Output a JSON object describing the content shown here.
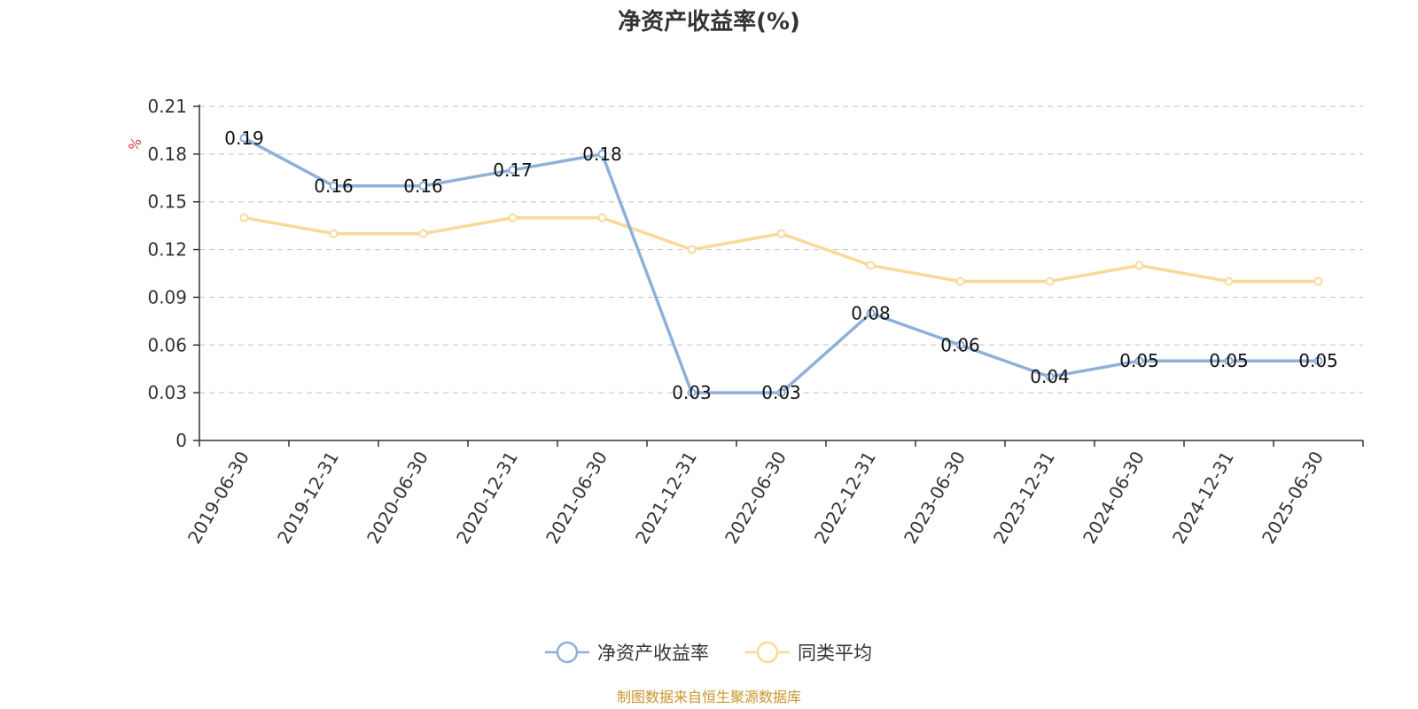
{
  "chart_data": {
    "type": "line",
    "title": "净资产收益率(%)",
    "y_unit": "%",
    "categories": [
      "2019-06-30",
      "2019-12-31",
      "2020-06-30",
      "2020-12-31",
      "2021-06-30",
      "2021-12-31",
      "2022-06-30",
      "2022-12-31",
      "2023-06-30",
      "2023-12-31",
      "2024-06-30",
      "2024-12-31",
      "2025-06-30"
    ],
    "ylim": [
      0,
      0.21
    ],
    "yticks": [
      "0",
      "0.03",
      "0.06",
      "0.09",
      "0.12",
      "0.15",
      "0.18",
      "0.21"
    ],
    "ytick_values": [
      0,
      0.03,
      0.06,
      0.09,
      0.12,
      0.15,
      0.18,
      0.21
    ],
    "grid": true,
    "legend_position": "bottom-center",
    "series": [
      {
        "name": "净资产收益率",
        "color": "#8eb0da",
        "show_labels": true,
        "values": [
          0.19,
          0.16,
          0.16,
          0.17,
          0.18,
          0.03,
          0.03,
          0.08,
          0.06,
          0.04,
          0.05,
          0.05,
          0.05
        ],
        "labels": [
          "0.19",
          "0.16",
          "0.16",
          "0.17",
          "0.18",
          "0.03",
          "0.03",
          "0.08",
          "0.06",
          "0.04",
          "0.05",
          "0.05",
          "0.05"
        ]
      },
      {
        "name": "同类平均",
        "color": "#fad998",
        "show_labels": false,
        "values": [
          0.14,
          0.13,
          0.13,
          0.14,
          0.14,
          0.12,
          0.13,
          0.11,
          0.1,
          0.1,
          0.11,
          0.1,
          0.1
        ]
      }
    ],
    "source": "制图数据来自恒生聚源数据库",
    "source_color": "#c9962c",
    "unit_color": "#d9363e"
  }
}
